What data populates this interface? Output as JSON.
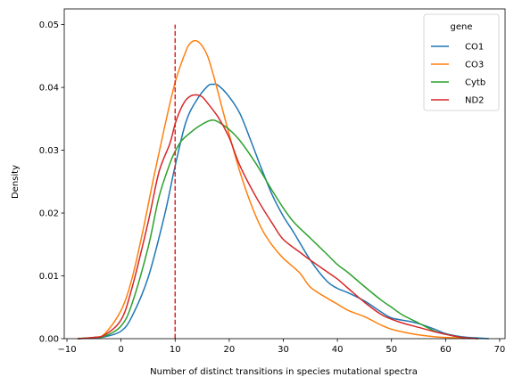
{
  "chart_data": {
    "type": "line",
    "chart_kind": "kde",
    "xlabel": "Number of distinct transitions in species mutational spectra",
    "ylabel": "Density",
    "xlim": [
      -10.5,
      71
    ],
    "ylim": [
      0,
      0.0525
    ],
    "xticks": [
      -10,
      0,
      10,
      20,
      30,
      40,
      50,
      60,
      70
    ],
    "xtick_labels": [
      "−10",
      "0",
      "10",
      "20",
      "30",
      "40",
      "50",
      "60",
      "70"
    ],
    "yticks": [
      0.0,
      0.01,
      0.02,
      0.03,
      0.04,
      0.05
    ],
    "ytick_labels": [
      "0.00",
      "0.01",
      "0.02",
      "0.03",
      "0.04",
      "0.05"
    ],
    "grid": false,
    "legend": {
      "title": "gene",
      "position": "top-right"
    },
    "series": [
      {
        "name": "CO1",
        "color": "#1f77b4",
        "x": [
          -8,
          -5,
          -3,
          0,
          2,
          5,
          8,
          10,
          12,
          14,
          16,
          17,
          18,
          20,
          22,
          24,
          26,
          28,
          30,
          32,
          35,
          38,
          40,
          42,
          45,
          48,
          50,
          53,
          55,
          58,
          60,
          63,
          66,
          68
        ],
        "y": [
          0.0,
          0.0001,
          0.0003,
          0.0012,
          0.0035,
          0.0097,
          0.0195,
          0.0275,
          0.0345,
          0.038,
          0.0402,
          0.0405,
          0.0403,
          0.0385,
          0.0358,
          0.0315,
          0.027,
          0.0228,
          0.0195,
          0.0168,
          0.0125,
          0.0092,
          0.008,
          0.0073,
          0.006,
          0.0043,
          0.0033,
          0.0028,
          0.0024,
          0.0015,
          0.0008,
          0.0003,
          0.0001,
          0.0
        ]
      },
      {
        "name": "CO3",
        "color": "#ff7f0e",
        "x": [
          -8,
          -5,
          -3,
          0,
          2,
          4,
          6,
          8,
          10,
          12,
          13,
          14,
          15,
          16,
          17,
          18,
          20,
          22,
          24,
          26,
          28,
          30,
          33,
          35,
          38,
          40,
          42,
          45,
          48,
          50,
          53,
          55,
          58,
          60,
          63,
          66
        ],
        "y": [
          0.0,
          0.0002,
          0.0008,
          0.0045,
          0.0095,
          0.017,
          0.0255,
          0.0335,
          0.0408,
          0.0458,
          0.0472,
          0.0474,
          0.0466,
          0.045,
          0.0422,
          0.039,
          0.0325,
          0.0265,
          0.0215,
          0.0175,
          0.0148,
          0.0128,
          0.0105,
          0.0082,
          0.0065,
          0.0055,
          0.0045,
          0.0035,
          0.0022,
          0.0015,
          0.0009,
          0.0006,
          0.0003,
          0.0002,
          0.0001,
          0.0
        ]
      },
      {
        "name": "Cytb",
        "color": "#2ca02c",
        "x": [
          -8,
          -5,
          -3,
          0,
          2,
          5,
          7,
          9,
          10,
          11,
          12,
          14,
          16,
          17,
          18,
          20,
          22,
          25,
          28,
          30,
          32,
          35,
          38,
          40,
          42,
          45,
          48,
          50,
          52,
          55,
          58,
          60,
          63,
          66
        ],
        "y": [
          0.0,
          0.0002,
          0.0004,
          0.002,
          0.0055,
          0.0145,
          0.0225,
          0.0278,
          0.0298,
          0.0313,
          0.0322,
          0.0336,
          0.0346,
          0.0348,
          0.0345,
          0.0333,
          0.0315,
          0.0278,
          0.0235,
          0.0208,
          0.0185,
          0.016,
          0.0135,
          0.0118,
          0.0105,
          0.0083,
          0.0062,
          0.005,
          0.0038,
          0.0025,
          0.0012,
          0.0007,
          0.0002,
          0.0
        ]
      },
      {
        "name": "ND2",
        "color": "#d62728",
        "x": [
          -8,
          -5,
          -3,
          0,
          2,
          5,
          7,
          9,
          10,
          11,
          12,
          13,
          14,
          15,
          16,
          18,
          20,
          22,
          25,
          28,
          30,
          33,
          35,
          38,
          40,
          42,
          45,
          48,
          50,
          52,
          55,
          58,
          60,
          63,
          66
        ],
        "y": [
          0.0,
          0.0002,
          0.0006,
          0.003,
          0.008,
          0.0185,
          0.0265,
          0.031,
          0.0342,
          0.0365,
          0.038,
          0.0387,
          0.0388,
          0.0385,
          0.0375,
          0.0352,
          0.032,
          0.0275,
          0.0225,
          0.0183,
          0.0158,
          0.0138,
          0.0125,
          0.0107,
          0.0095,
          0.008,
          0.0058,
          0.0039,
          0.0031,
          0.0025,
          0.0018,
          0.0011,
          0.0007,
          0.0002,
          0.0
        ]
      }
    ],
    "reference_line": {
      "orientation": "vertical",
      "x": 10,
      "y_range": [
        0,
        0.05
      ],
      "style": "dashed",
      "color": "#d62728"
    }
  }
}
